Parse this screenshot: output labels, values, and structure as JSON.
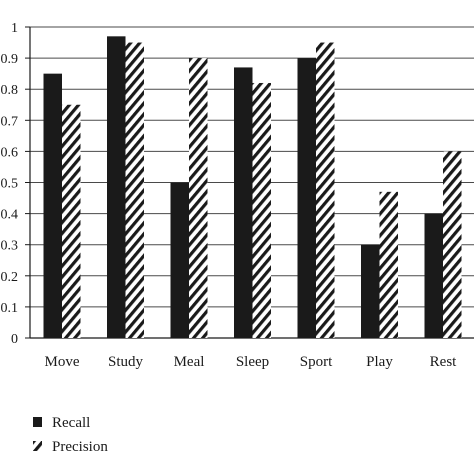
{
  "chart_data": {
    "type": "bar",
    "title": "",
    "xlabel": "",
    "ylabel": "",
    "categories": [
      "Move",
      "Study",
      "Meal",
      "Sleep",
      "Sport",
      "Play",
      "Rest"
    ],
    "series": [
      {
        "name": "Recall",
        "values": [
          0.85,
          0.97,
          0.5,
          0.87,
          0.9,
          0.3,
          0.4
        ],
        "fill": "solid",
        "color": "#1a1a1a"
      },
      {
        "name": "Precision",
        "values": [
          0.75,
          0.95,
          0.9,
          0.82,
          0.95,
          0.47,
          0.6
        ],
        "fill": "diagonal-hatch",
        "color": "#1a1a1a"
      }
    ],
    "ylim": [
      0,
      1
    ],
    "yticks": [
      "0",
      "0.1",
      "0.2",
      "0.3",
      "0.4",
      "0.5",
      "0.6",
      "0.7",
      "0.8",
      "0.9",
      "1"
    ],
    "grid": "horizontal",
    "legend_position": "bottom-left"
  }
}
